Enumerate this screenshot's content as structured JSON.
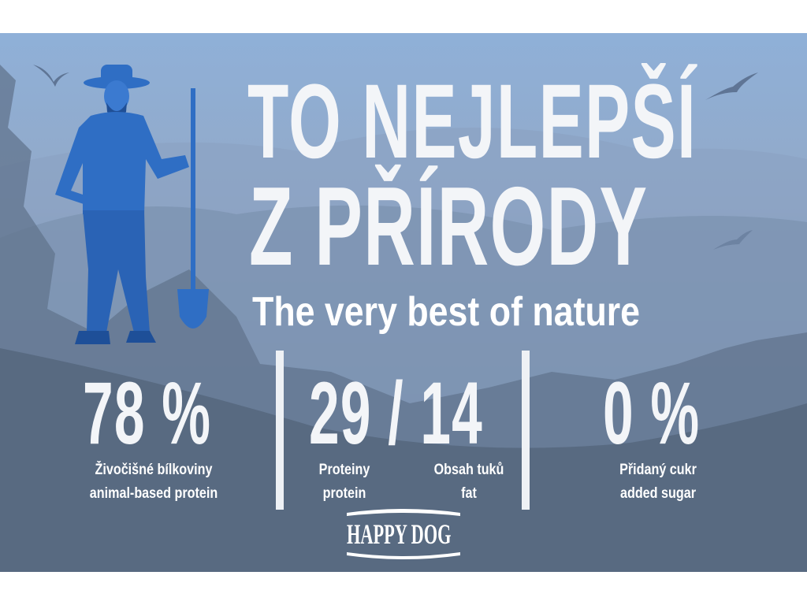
{
  "headline": {
    "line1": "TO NEJLEPŠÍ",
    "line2": "Z PŘÍRODY",
    "subtitle": "The very best of nature"
  },
  "stats": [
    {
      "value": "78 %",
      "label_cz": "Živočišné bílkoviny",
      "label_en": "animal-based protein"
    },
    {
      "value": "29 / 14",
      "labels": [
        {
          "label_cz": "Proteiny",
          "label_en": "protein"
        },
        {
          "label_cz": "Obsah tuků",
          "label_en": "fat"
        }
      ]
    },
    {
      "value": "0 %",
      "label_cz": "Přidaný cukr",
      "label_en": "added sugar"
    }
  ],
  "brand": {
    "logo_text": "HAPPY DOG"
  },
  "colors": {
    "sky": "#8fb0d8",
    "farmer": "#2f6ec4",
    "text": "#ffffff"
  }
}
